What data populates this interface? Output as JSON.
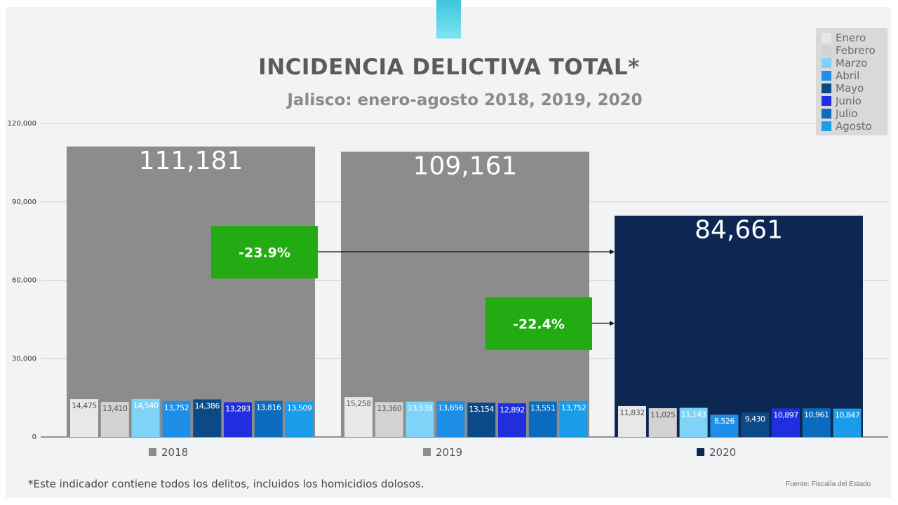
{
  "title": "INCIDENCIA DELICTIVA TOTAL*",
  "subtitle": "Jalisco: enero-agosto 2018, 2019, 2020",
  "footnote": "*Este indicador contiene todos los delitos, incluidos los homicidios dolosos.",
  "source": "Fuente: Fiscalía del Estado",
  "chart_data": {
    "type": "bar",
    "ylim": [
      0,
      120000
    ],
    "yticks": [
      0,
      30000,
      60000,
      90000,
      120000
    ],
    "ytick_labels": [
      "0",
      "30,000",
      "60,000",
      "90,000",
      "120,000"
    ],
    "grid": true,
    "legend_position": "top-right",
    "years": [
      {
        "year": "2018",
        "total": 111181,
        "total_label": "111,181",
        "color": "#8c8c8c",
        "months": [
          14475,
          13410,
          14540,
          13752,
          14386,
          13293,
          13816,
          13509
        ],
        "month_labels": [
          "14,475",
          "13,410",
          "14,540",
          "13,752",
          "14,386",
          "13,293",
          "13,816",
          "13,509"
        ]
      },
      {
        "year": "2019",
        "total": 109161,
        "total_label": "109,161",
        "color": "#8c8c8c",
        "months": [
          15258,
          13360,
          13538,
          13656,
          13154,
          12892,
          13551,
          13752
        ],
        "month_labels": [
          "15,258",
          "13,360",
          "13,538",
          "13,656",
          "13,154",
          "12,892",
          "13,551",
          "13,752"
        ]
      },
      {
        "year": "2020",
        "total": 84661,
        "total_label": "84,661",
        "color": "#0c2752",
        "months": [
          11832,
          11025,
          11143,
          8526,
          9430,
          10897,
          10961,
          10847
        ],
        "month_labels": [
          "11,832",
          "11,025",
          "11,143",
          "8,526",
          "9,430",
          "10,897",
          "10,961",
          "10,847"
        ]
      }
    ],
    "month_series": [
      {
        "name": "Enero",
        "color": "#e8e8e8",
        "label_color": "#555555"
      },
      {
        "name": "Febrero",
        "color": "#d2d2d2",
        "label_color": "#555555"
      },
      {
        "name": "Marzo",
        "color": "#7fd3f7",
        "label_color": "#ffffff"
      },
      {
        "name": "Abril",
        "color": "#1e8fe8",
        "label_color": "#ffffff"
      },
      {
        "name": "Mayo",
        "color": "#0b4a86",
        "label_color": "#ffffff"
      },
      {
        "name": "Junio",
        "color": "#1f2fe0",
        "label_color": "#ffffff"
      },
      {
        "name": "Julio",
        "color": "#0a6bbf",
        "label_color": "#ffffff"
      },
      {
        "name": "Agosto",
        "color": "#1a9ce8",
        "label_color": "#ffffff"
      }
    ],
    "changes": [
      {
        "label": "-23.9%",
        "from": "2018",
        "to": "2020",
        "color": "#22ab12"
      },
      {
        "label": "-22.4%",
        "from": "2019",
        "to": "2020",
        "color": "#22ab12"
      }
    ]
  }
}
